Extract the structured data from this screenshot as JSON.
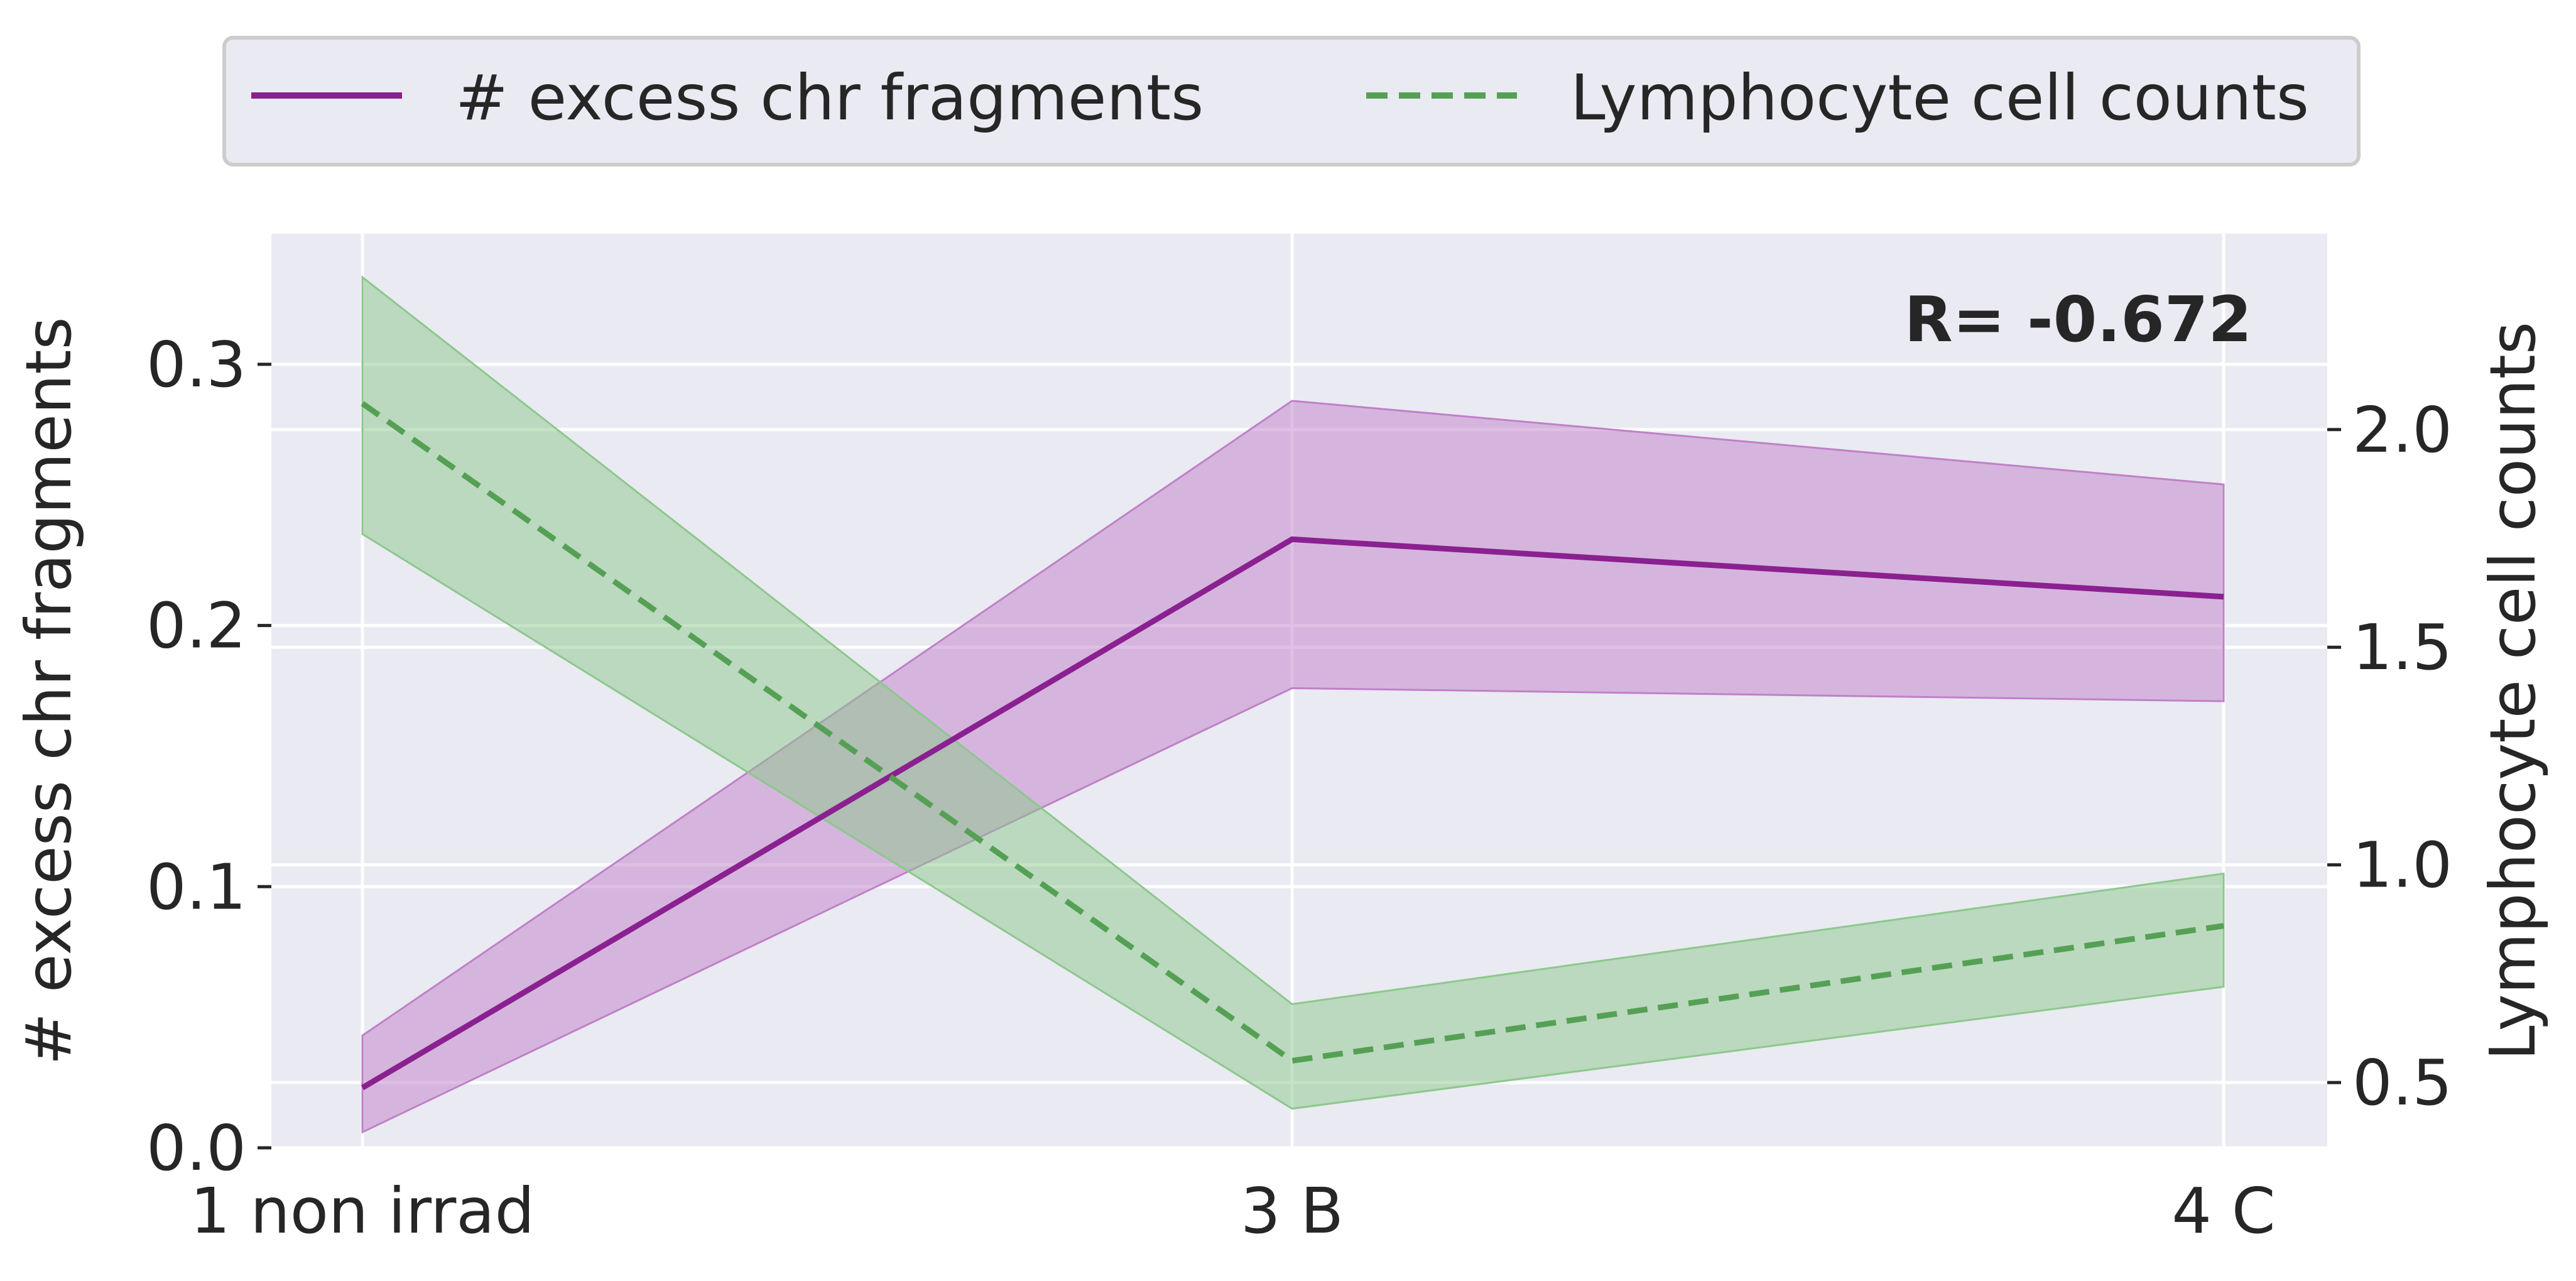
{
  "chart_data": {
    "type": "line",
    "categories": [
      "1 non irrad",
      "3 B",
      "4 C"
    ],
    "annotation": "R= -0.672",
    "legend": {
      "position": "top-center",
      "entries": [
        "# excess chr fragments",
        "Lymphocyte cell counts"
      ]
    },
    "axes": {
      "left": {
        "label": "# excess chr fragments",
        "ylim": [
          0.0,
          0.35
        ],
        "ticks": [
          0.0,
          0.1,
          0.2,
          0.3
        ],
        "tick_labels": [
          "0.0",
          "0.1",
          "0.2",
          "0.3"
        ]
      },
      "right": {
        "label": "Lymphocyte cell counts",
        "ylim": [
          0.35,
          2.45
        ],
        "ticks": [
          0.5,
          1.0,
          1.5,
          2.0
        ],
        "tick_labels": [
          "0.5",
          "1.0",
          "1.5",
          "2.0"
        ]
      }
    },
    "grid": true,
    "series": [
      {
        "name": "# excess chr fragments",
        "axis": "left",
        "style": "solid",
        "color": "#8B2090",
        "band_color": "#C080C8",
        "values": [
          0.023,
          0.233,
          0.211
        ],
        "lower": [
          0.006,
          0.176,
          0.171
        ],
        "upper": [
          0.043,
          0.286,
          0.254
        ]
      },
      {
        "name": "Lymphocyte cell counts",
        "axis": "right",
        "style": "dashed",
        "color": "#55A055",
        "band_color": "#8CC88C",
        "values": [
          2.06,
          0.55,
          0.86
        ],
        "lower": [
          1.76,
          0.44,
          0.72
        ],
        "upper": [
          2.35,
          0.68,
          0.98
        ]
      }
    ]
  }
}
